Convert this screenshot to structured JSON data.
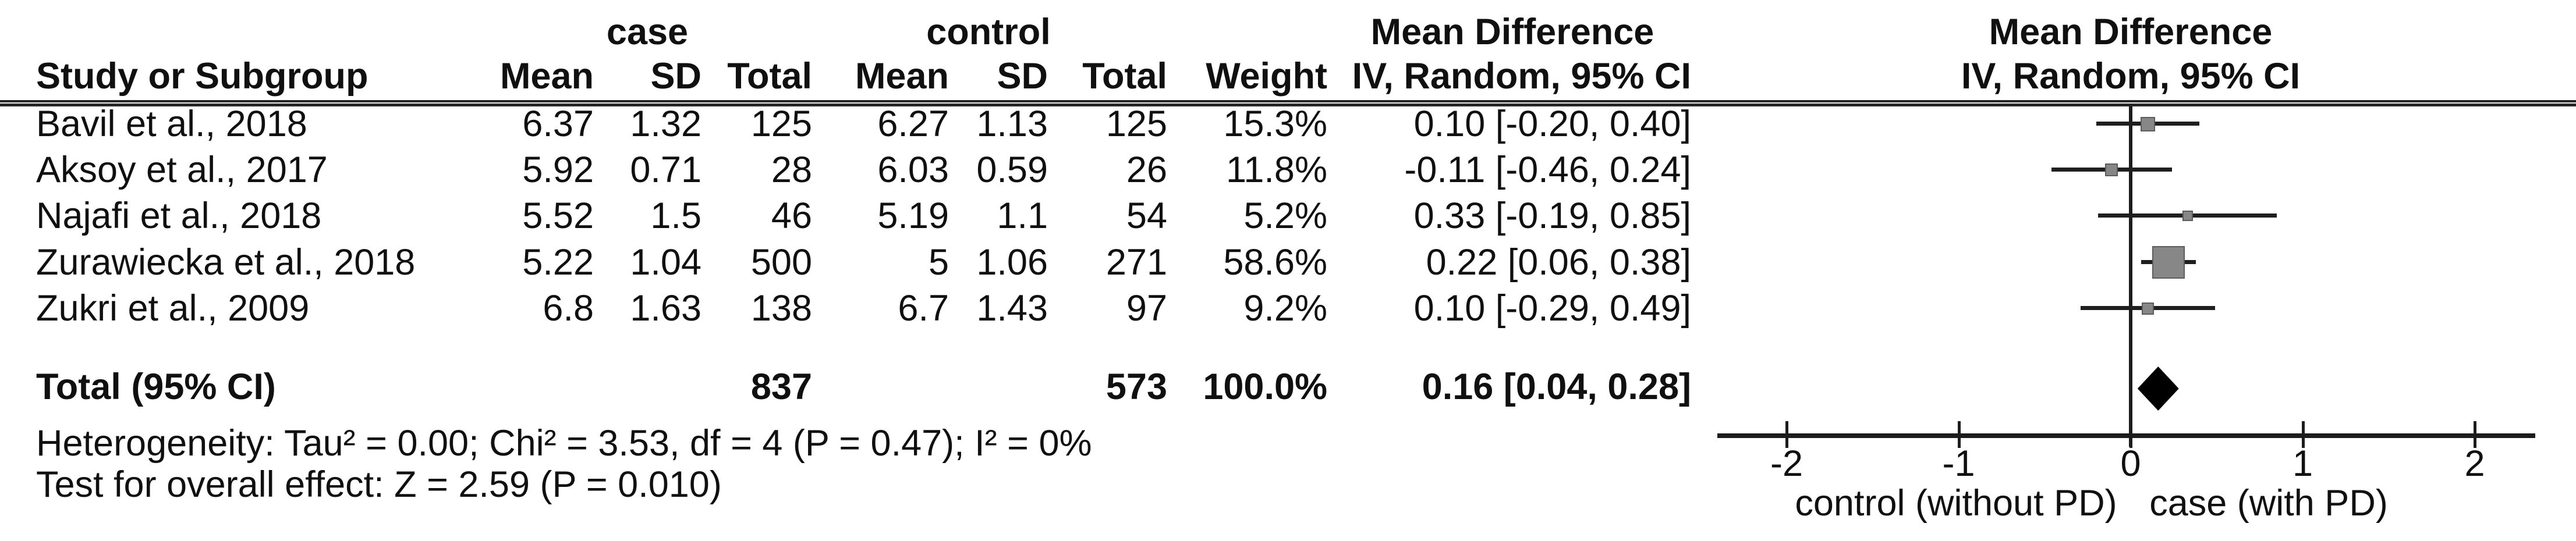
{
  "figure": {
    "group_headers": {
      "case": "case",
      "control": "control",
      "mean_difference": "Mean Difference"
    },
    "col_headers": {
      "study": "Study or Subgroup",
      "mean": "Mean",
      "sd": "SD",
      "total": "Total",
      "weight": "Weight",
      "iv": "IV, Random, 95% CI"
    },
    "rows": [
      {
        "study": "Bavil et al., 2018",
        "case_mean": "6.37",
        "case_sd": "1.32",
        "case_total": "125",
        "ctrl_mean": "6.27",
        "ctrl_sd": "1.13",
        "ctrl_total": "125",
        "weight": "15.3%",
        "ci": "0.10 [-0.20, 0.40]"
      },
      {
        "study": "Aksoy et al., 2017",
        "case_mean": "5.92",
        "case_sd": "0.71",
        "case_total": "28",
        "ctrl_mean": "6.03",
        "ctrl_sd": "0.59",
        "ctrl_total": "26",
        "weight": "11.8%",
        "ci": "-0.11 [-0.46, 0.24]"
      },
      {
        "study": "Najafi et al., 2018",
        "case_mean": "5.52",
        "case_sd": "1.5",
        "case_total": "46",
        "ctrl_mean": "5.19",
        "ctrl_sd": "1.1",
        "ctrl_total": "54",
        "weight": "5.2%",
        "ci": "0.33 [-0.19, 0.85]"
      },
      {
        "study": "Zurawiecka et al., 2018",
        "case_mean": "5.22",
        "case_sd": "1.04",
        "case_total": "500",
        "ctrl_mean": "5",
        "ctrl_sd": "1.06",
        "ctrl_total": "271",
        "weight": "58.6%",
        "ci": "0.22 [0.06, 0.38]"
      },
      {
        "study": "Zukri et al., 2009",
        "case_mean": "6.8",
        "case_sd": "1.63",
        "case_total": "138",
        "ctrl_mean": "6.7",
        "ctrl_sd": "1.43",
        "ctrl_total": "97",
        "weight": "9.2%",
        "ci": "0.10 [-0.29, 0.49]"
      }
    ],
    "total_row": {
      "label": "Total (95% CI)",
      "case_total": "837",
      "ctrl_total": "573",
      "weight": "100.0%",
      "ci": "0.16 [0.04, 0.28]"
    },
    "footnotes": {
      "heterogeneity": "Heterogeneity: Tau² = 0.00; Chi² = 3.53, df = 4 (P = 0.47); I² = 0%",
      "overall_effect": "Test for overall effect: Z = 2.59 (P = 0.010)"
    },
    "axis": {
      "label_left": "control (without PD)",
      "label_right": "case (with PD)"
    }
  },
  "chart_data": {
    "type": "forest",
    "title": "Mean Difference",
    "effect_model": "IV, Random, 95% CI",
    "x_ticks": [
      -2,
      -1,
      0,
      1,
      2
    ],
    "xlim": [
      -2.4,
      2.35
    ],
    "axis_label_left": "control (without PD)",
    "axis_label_right": "case (with PD)",
    "studies": [
      {
        "name": "Bavil et al., 2018",
        "md": 0.1,
        "ci_low": -0.2,
        "ci_high": 0.4,
        "weight_pct": 15.3
      },
      {
        "name": "Aksoy et al., 2017",
        "md": -0.11,
        "ci_low": -0.46,
        "ci_high": 0.24,
        "weight_pct": 11.8
      },
      {
        "name": "Najafi et al., 2018",
        "md": 0.33,
        "ci_low": -0.19,
        "ci_high": 0.85,
        "weight_pct": 5.2
      },
      {
        "name": "Zurawiecka et al., 2018",
        "md": 0.22,
        "ci_low": 0.06,
        "ci_high": 0.38,
        "weight_pct": 58.6
      },
      {
        "name": "Zukri et al., 2009",
        "md": 0.1,
        "ci_low": -0.29,
        "ci_high": 0.49,
        "weight_pct": 9.2
      }
    ],
    "total": {
      "name": "Total (95% CI)",
      "md": 0.16,
      "ci_low": 0.04,
      "ci_high": 0.28,
      "weight_pct": 100.0
    },
    "heterogeneity": {
      "tau2": 0.0,
      "chi2": 3.53,
      "df": 4,
      "p": 0.47,
      "i2_pct": 0
    },
    "overall_effect": {
      "z": 2.59,
      "p": 0.01
    },
    "marker_color": "#878787",
    "diamond_color": "#000000"
  }
}
